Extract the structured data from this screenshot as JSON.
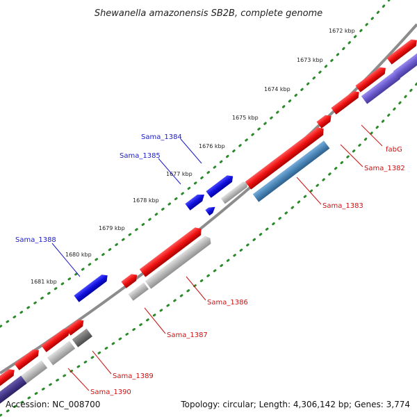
{
  "title": "Shewanella amazonensis SB2B, complete genome",
  "footer": {
    "accession": "Accession: NC_008700",
    "summary": "Topology: circular; Length: 4,306,142 bp; Genes: 3,774"
  },
  "ruler_labels": [
    "1672 kbp",
    "1673 kbp",
    "1674 kbp",
    "1675 kbp",
    "1676 kbp",
    "1677 kbp",
    "1678 kbp",
    "1679 kbp",
    "1680 kbp",
    "1681 kbp"
  ],
  "gene_labels": {
    "blue": [
      "Sama_1384",
      "Sama_1385",
      "Sama_1388"
    ],
    "red": [
      "fabG",
      "Sama_1382",
      "Sama_1383",
      "Sama_1386",
      "Sama_1387",
      "Sama_1389",
      "Sama_1390"
    ]
  },
  "colors": {
    "backbone": "#8c8c8c",
    "ruler": "#2a8a2a",
    "forward_cds": "#ee1111",
    "reverse_cds": "#1111dd",
    "gray_feature": "#b8b8b8",
    "dark_gray_feature": "#707070",
    "steel_feature": "#4a86b8",
    "purple_feature": "#6a5acd",
    "label_blue": "#1a1acc",
    "label_red": "#cc1111"
  }
}
